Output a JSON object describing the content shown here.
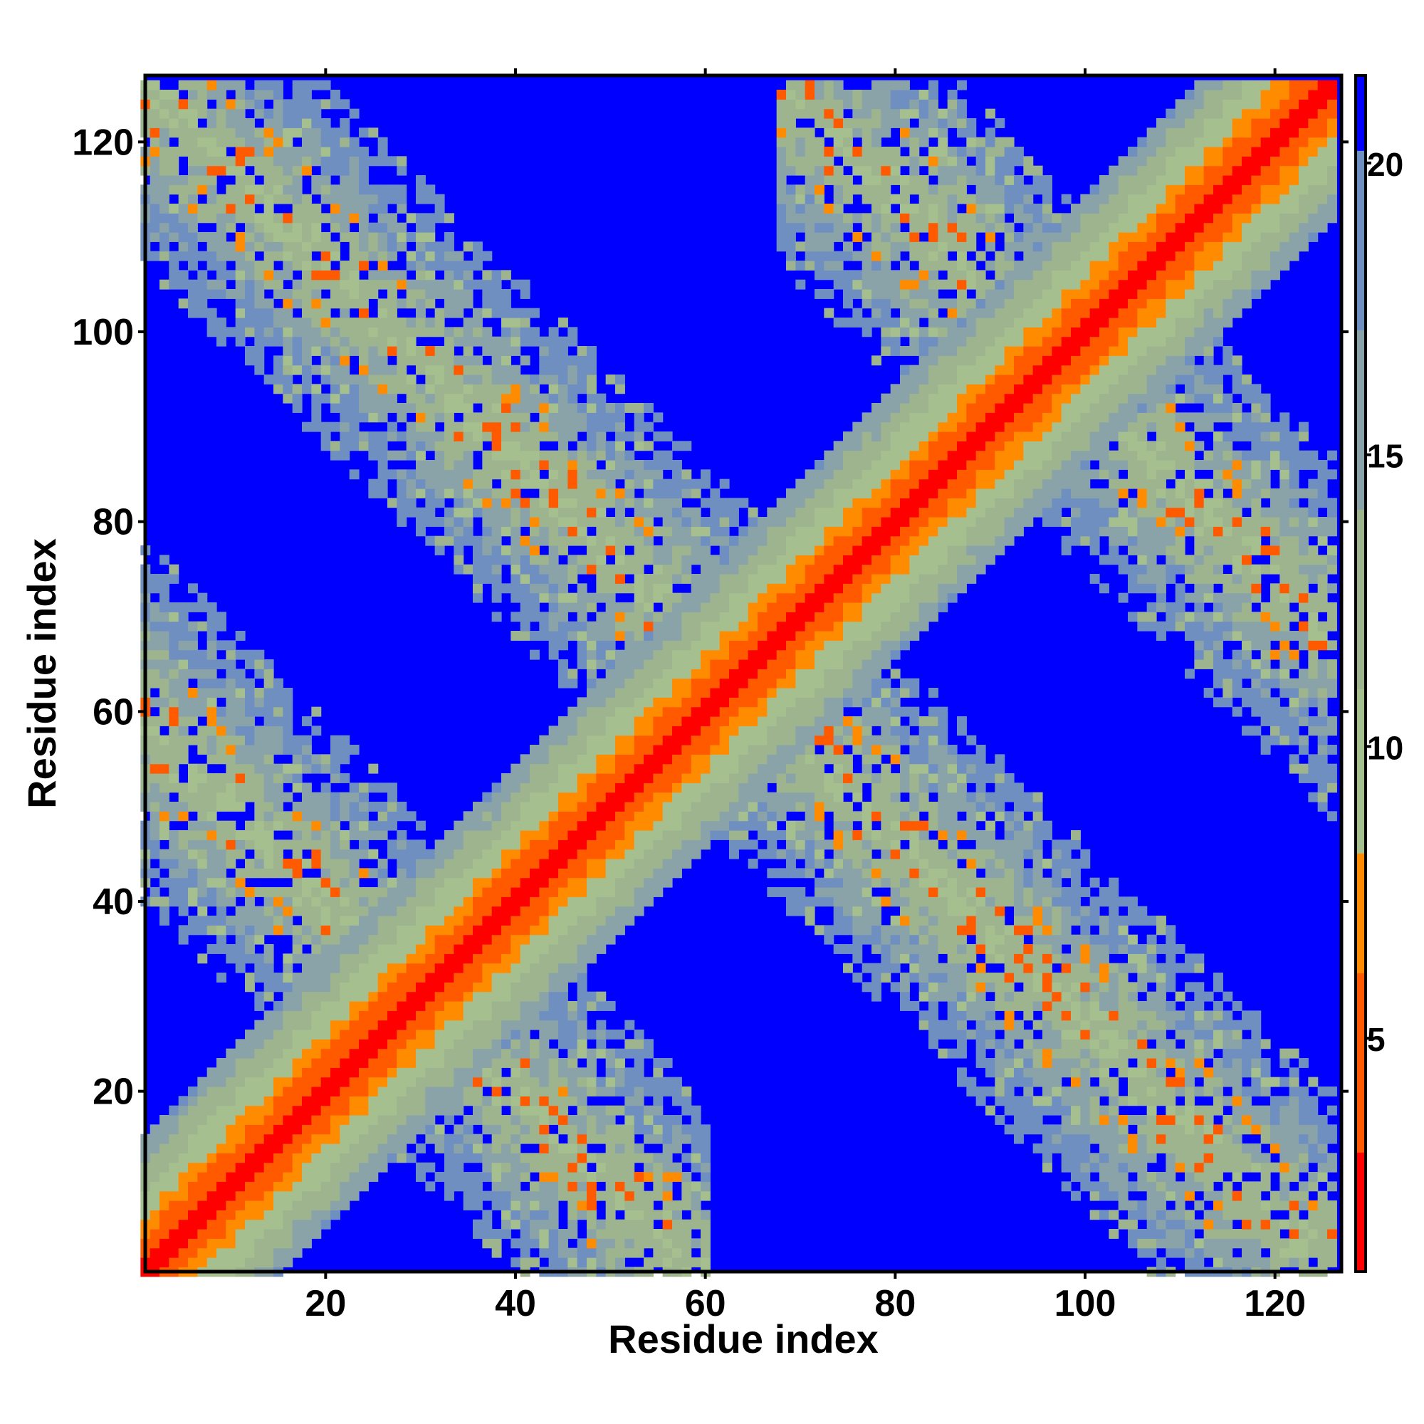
{
  "chart_data": {
    "type": "heatmap",
    "title": "",
    "xlabel": "Residue index",
    "ylabel": "Residue index",
    "xlim": [
      1,
      127
    ],
    "ylim": [
      1,
      127
    ],
    "x_ticks": [
      20,
      40,
      60,
      80,
      100,
      120
    ],
    "y_ticks": [
      20,
      40,
      60,
      80,
      100,
      120
    ],
    "colorbar": {
      "range": [
        1,
        21.5
      ],
      "ticks": [
        5,
        10,
        15,
        20
      ],
      "colors": {
        "low": "#ff0000",
        "mid_low": "#ff8c00",
        "mid": "#a6bf8f",
        "high": "#6f8fc0",
        "max": "#0000ff"
      }
    },
    "matrix_description_values": {
      "n_residues": 126,
      "main_diagonal_band": {
        "center_offset": 0,
        "halfwidth_residues": 14
      },
      "off_diagonal_bands": [
        {
          "center_sum": 60,
          "x_range": [
            1,
            60
          ]
        },
        {
          "center_sum": 127,
          "x_range": [
            1,
            127
          ]
        },
        {
          "center_sum": 194,
          "x_range": [
            68,
            127
          ]
        }
      ],
      "off_band_halfwidth_residues": 14,
      "background_value": 21.5
    }
  }
}
